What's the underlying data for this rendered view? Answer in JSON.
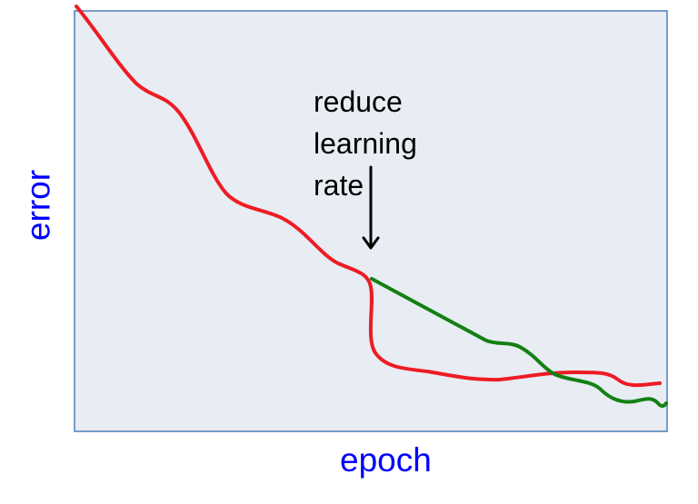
{
  "diagram": {
    "axis_labels": {
      "x": "epoch",
      "y": "error"
    },
    "annotation": {
      "lines": [
        "reduce",
        "learning",
        "rate"
      ]
    },
    "colors": {
      "plot_background": "#e8ecf3",
      "plot_border": "#4a7ebb",
      "axis_label": "#0000ff",
      "annotation_text": "#000000",
      "arrow": "#000000",
      "original_curve": "#ee1c24",
      "reduced_lr_curve": "#138013"
    },
    "curves": [
      {
        "id": "red-curve",
        "color": "#ee1c24"
      },
      {
        "id": "green-curve",
        "color": "#138013"
      }
    ]
  }
}
